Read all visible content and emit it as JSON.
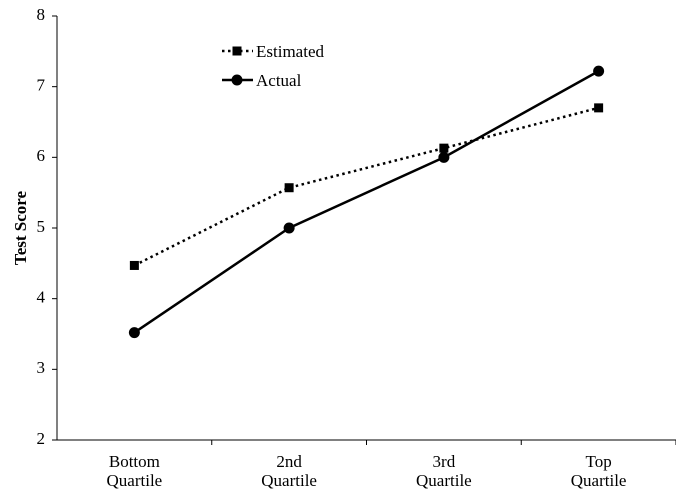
{
  "chart_data": {
    "type": "line",
    "title": "",
    "xlabel": "",
    "ylabel": "Test  Score",
    "categories": [
      [
        "Bottom",
        "Quartile"
      ],
      [
        "2nd",
        "Quartile"
      ],
      [
        "3rd",
        "Quartile"
      ],
      [
        "Top",
        "Quartile"
      ]
    ],
    "ylim": [
      2,
      8
    ],
    "yticks": [
      "2",
      "3",
      "4",
      "5",
      "6",
      "7",
      "8"
    ],
    "grid": false,
    "legend_position": "top-left",
    "series": [
      {
        "name": "Estimated",
        "values": [
          4.47,
          5.57,
          6.13,
          6.7
        ],
        "line_style": "dotted",
        "marker": "square",
        "color": "#000000"
      },
      {
        "name": "Actual",
        "values": [
          3.52,
          5.0,
          6.0,
          7.22
        ],
        "line_style": "solid",
        "marker": "circle",
        "color": "#000000"
      }
    ]
  }
}
